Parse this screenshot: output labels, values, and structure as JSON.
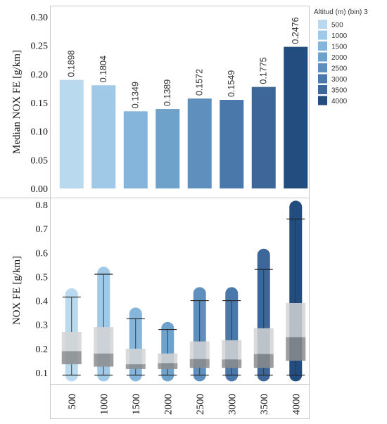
{
  "legend": {
    "title": "Altitud (m) (bin) 3",
    "items": [
      "500",
      "1000",
      "1500",
      "2000",
      "2500",
      "3000",
      "3500",
      "4000"
    ]
  },
  "colors": [
    "#b8d9ee",
    "#9fc9e6",
    "#85b5da",
    "#6fa2cb",
    "#5f8fbd",
    "#4b78ab",
    "#3d6699",
    "#224d7e"
  ],
  "chart_data": [
    {
      "type": "bar",
      "categories": [
        "500",
        "1000",
        "1500",
        "2000",
        "2500",
        "3000",
        "3500",
        "4000"
      ],
      "values": [
        0.1898,
        0.1804,
        0.1349,
        0.1389,
        0.1572,
        0.1549,
        0.1775,
        0.2476
      ],
      "data_labels": [
        "0.1898",
        "0.1804",
        "0.1349",
        "0.1389",
        "0.1572",
        "0.1549",
        "0.1775",
        "0.2476"
      ],
      "ylabel": "Median NOX FE [g/km]",
      "ylim": [
        0,
        0.3
      ],
      "yticks": [
        0.0,
        0.05,
        0.1,
        0.15,
        0.2,
        0.25,
        0.3
      ],
      "ytick_labels": [
        "0.00",
        "0.05",
        "0.10",
        "0.15",
        "0.20",
        "0.25",
        "0.30"
      ]
    },
    {
      "type": "box",
      "categories": [
        "500",
        "1000",
        "1500",
        "2000",
        "2500",
        "3000",
        "3500",
        "4000"
      ],
      "ylabel": "NOX FE [g/km]",
      "ylim": [
        0.05,
        0.82
      ],
      "yticks": [
        0.1,
        0.2,
        0.3,
        0.4,
        0.5,
        0.6,
        0.7,
        0.8
      ],
      "ytick_labels": [
        "0.1",
        "0.2",
        "0.3",
        "0.4",
        "0.5",
        "0.6",
        "0.7",
        "0.8"
      ],
      "boxes": [
        {
          "min": 0.09,
          "q1": 0.135,
          "median": 0.19,
          "q3": 0.27,
          "whisker_high": 0.415,
          "max": 0.425
        },
        {
          "min": 0.09,
          "q1": 0.125,
          "median": 0.18,
          "q3": 0.29,
          "whisker_high": 0.51,
          "max": 0.515
        },
        {
          "min": 0.09,
          "q1": 0.115,
          "median": 0.135,
          "q3": 0.2,
          "whisker_high": 0.325,
          "max": 0.345
        },
        {
          "min": 0.09,
          "q1": 0.115,
          "median": 0.14,
          "q3": 0.18,
          "whisker_high": 0.28,
          "max": 0.285
        },
        {
          "min": 0.09,
          "q1": 0.12,
          "median": 0.157,
          "q3": 0.23,
          "whisker_high": 0.4,
          "max": 0.43
        },
        {
          "min": 0.09,
          "q1": 0.12,
          "median": 0.155,
          "q3": 0.235,
          "whisker_high": 0.4,
          "max": 0.43
        },
        {
          "min": 0.09,
          "q1": 0.12,
          "median": 0.178,
          "q3": 0.285,
          "whisker_high": 0.53,
          "max": 0.59
        },
        {
          "min": 0.09,
          "q1": 0.15,
          "median": 0.248,
          "q3": 0.39,
          "whisker_high": 0.74,
          "max": 0.79
        }
      ]
    }
  ]
}
